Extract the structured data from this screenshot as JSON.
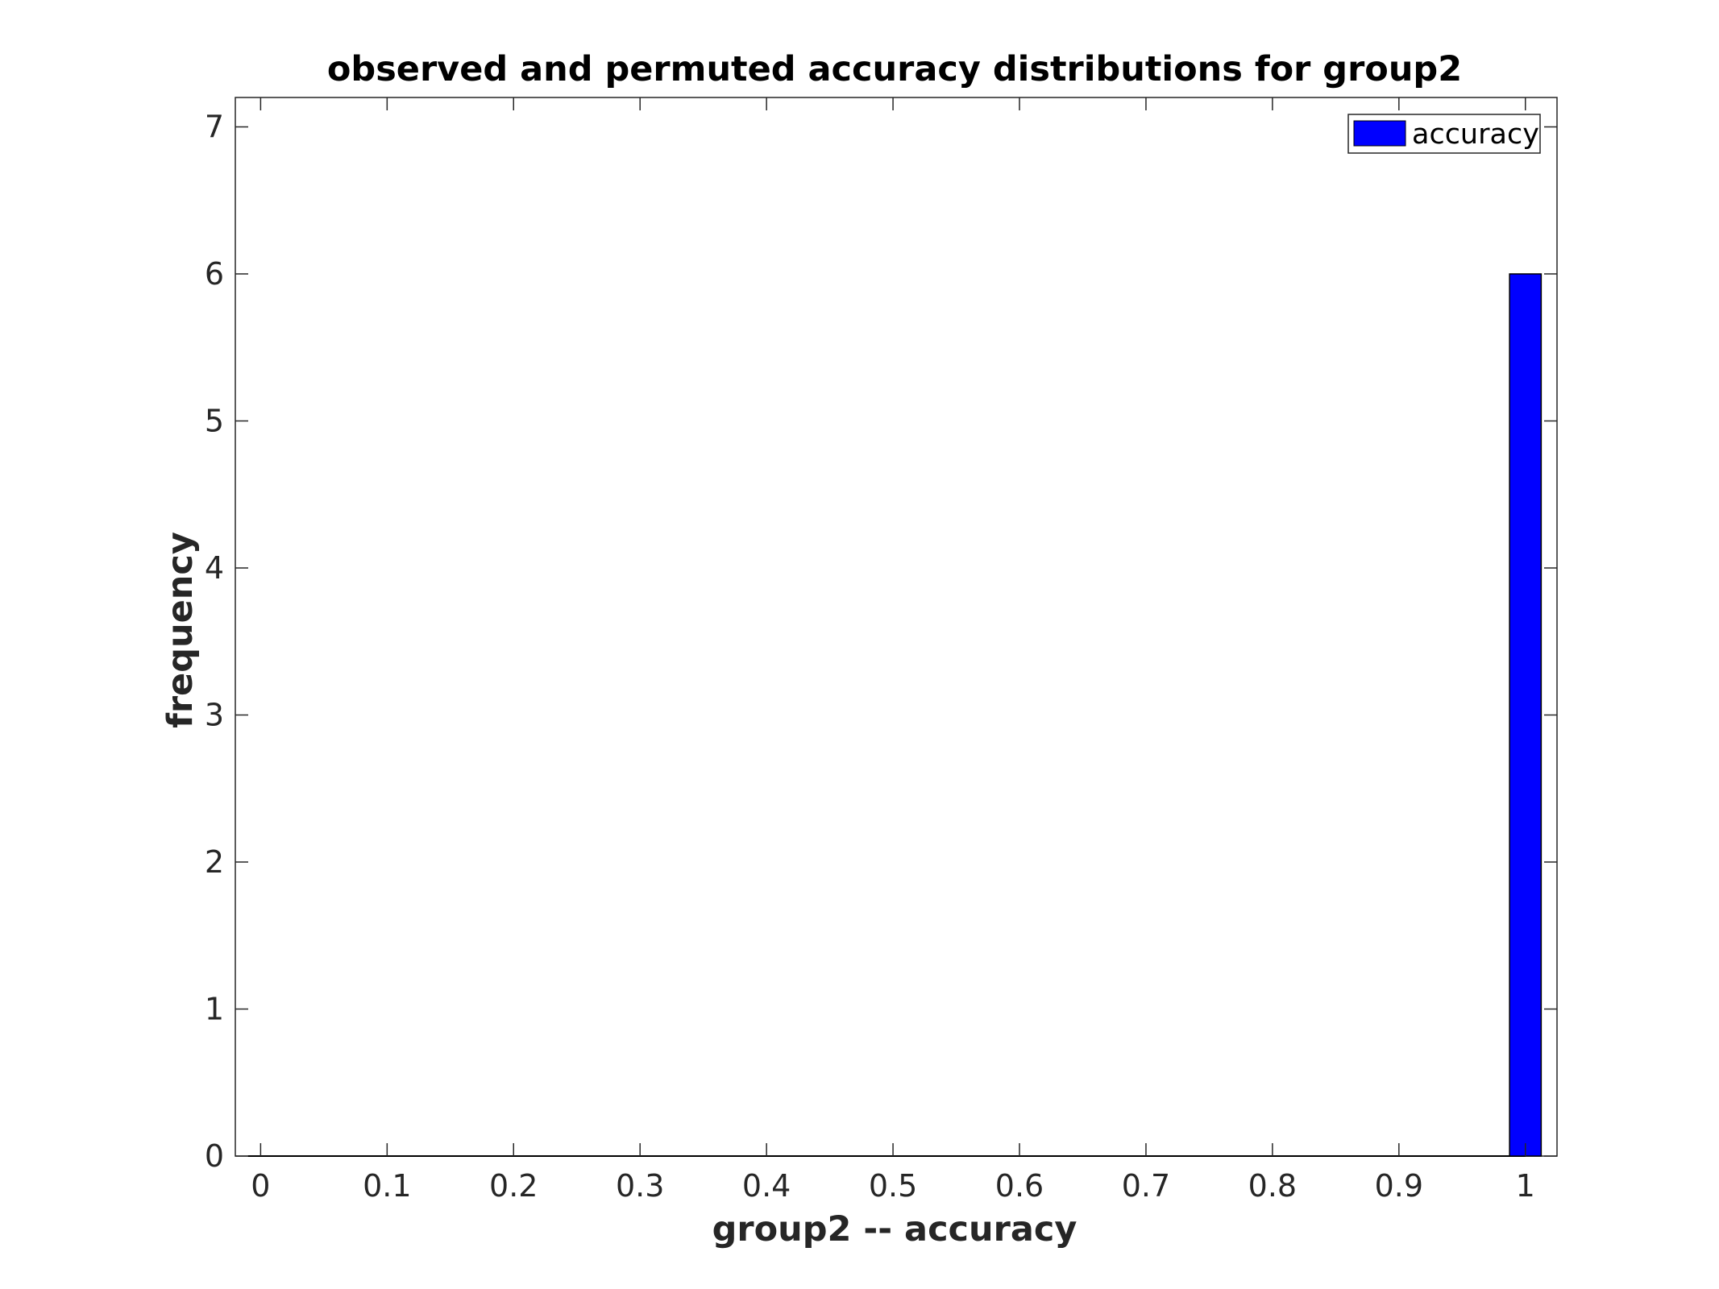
{
  "chart_data": {
    "type": "bar",
    "title": "observed and permuted accuracy distributions for group2",
    "xlabel": "group2 -- accuracy",
    "ylabel": "frequency",
    "xlim": [
      -0.02,
      1.025
    ],
    "ylim": [
      0,
      7.2
    ],
    "xticks": [
      0,
      0.1,
      0.2,
      0.3,
      0.4,
      0.5,
      0.6,
      0.7,
      0.8,
      0.9,
      1
    ],
    "xtick_labels": [
      "0",
      "0.1",
      "0.2",
      "0.3",
      "0.4",
      "0.5",
      "0.6",
      "0.7",
      "0.8",
      "0.9",
      "1"
    ],
    "yticks": [
      0,
      1,
      2,
      3,
      4,
      5,
      6,
      7
    ],
    "ytick_labels": [
      "0",
      "1",
      "2",
      "3",
      "4",
      "5",
      "6",
      "7"
    ],
    "grid": false,
    "legend_position": "top-right",
    "series": [
      {
        "name": "accuracy",
        "color": "#0000ff",
        "bin_width": 0.025,
        "bins": [
          {
            "x": 1.0,
            "value": 6
          }
        ],
        "baseline_range": [
          -0.01,
          1.0
        ]
      }
    ]
  }
}
